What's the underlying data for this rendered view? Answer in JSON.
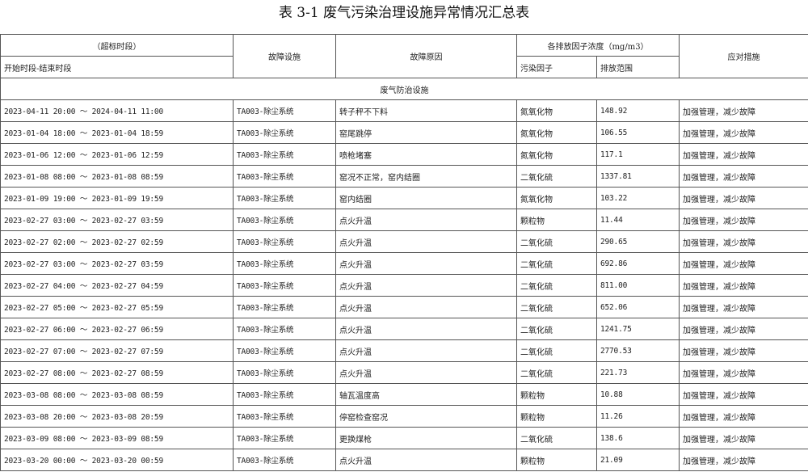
{
  "title": "表 3-1  废气污染治理设施异常情况汇总表",
  "header": {
    "period_group": "（超标时段）",
    "period": "开始时段-结束时段",
    "facility": "故障设施",
    "cause": "故障原因",
    "concentration_group": "各排放因子浓度（mg/m3）",
    "pollutant": "污染因子",
    "range": "排放范围",
    "measure": "应对措施"
  },
  "section": "废气防治设施",
  "rows": [
    {
      "period": "2023-04-11 20:00 ～ 2024-04-11 11:00",
      "facility": "TA003-除尘系统",
      "cause": "转子秤不下料",
      "pollutant": "氮氧化物",
      "range": "148.92",
      "measure": "加强管理，减少故障"
    },
    {
      "period": "2023-01-04 18:00 ～ 2023-01-04 18:59",
      "facility": "TA003-除尘系统",
      "cause": "窑尾跳停",
      "pollutant": "氮氧化物",
      "range": "106.55",
      "measure": "加强管理，减少故障"
    },
    {
      "period": "2023-01-06 12:00 ～ 2023-01-06 12:59",
      "facility": "TA003-除尘系统",
      "cause": "喷枪堵塞",
      "pollutant": "氮氧化物",
      "range": "117.1",
      "measure": "加强管理，减少故障"
    },
    {
      "period": "2023-01-08 08:00 ～ 2023-01-08 08:59",
      "facility": "TA003-除尘系统",
      "cause": "窑况不正常，窑内结圈",
      "pollutant": "二氧化硫",
      "range": "1337.81",
      "measure": "加强管理，减少故障"
    },
    {
      "period": "2023-01-09 19:00 ～ 2023-01-09 19:59",
      "facility": "TA003-除尘系统",
      "cause": "窑内结圈",
      "pollutant": "氮氧化物",
      "range": "103.22",
      "measure": "加强管理，减少故障"
    },
    {
      "period": "2023-02-27 03:00 ～ 2023-02-27 03:59",
      "facility": "TA003-除尘系统",
      "cause": "点火升温",
      "pollutant": "颗粒物",
      "range": "11.44",
      "measure": "加强管理，减少故障"
    },
    {
      "period": "2023-02-27 02:00 ～ 2023-02-27 02:59",
      "facility": "TA003-除尘系统",
      "cause": "点火升温",
      "pollutant": "二氧化硫",
      "range": "290.65",
      "measure": "加强管理，减少故障"
    },
    {
      "period": "2023-02-27 03:00 ～ 2023-02-27 03:59",
      "facility": "TA003-除尘系统",
      "cause": "点火升温",
      "pollutant": "二氧化硫",
      "range": "692.86",
      "measure": "加强管理，减少故障"
    },
    {
      "period": "2023-02-27 04:00 ～ 2023-02-27 04:59",
      "facility": "TA003-除尘系统",
      "cause": "点火升温",
      "pollutant": "二氧化硫",
      "range": "811.00",
      "measure": "加强管理，减少故障"
    },
    {
      "period": "2023-02-27 05:00 ～ 2023-02-27 05:59",
      "facility": "TA003-除尘系统",
      "cause": "点火升温",
      "pollutant": "二氧化硫",
      "range": "652.06",
      "measure": "加强管理，减少故障"
    },
    {
      "period": "2023-02-27 06:00 ～ 2023-02-27 06:59",
      "facility": "TA003-除尘系统",
      "cause": "点火升温",
      "pollutant": "二氧化硫",
      "range": "1241.75",
      "measure": "加强管理，减少故障"
    },
    {
      "period": "2023-02-27 07:00 ～ 2023-02-27 07:59",
      "facility": "TA003-除尘系统",
      "cause": "点火升温",
      "pollutant": "二氧化硫",
      "range": "2770.53",
      "measure": "加强管理，减少故障"
    },
    {
      "period": "2023-02-27 08:00 ～ 2023-02-27 08:59",
      "facility": "TA003-除尘系统",
      "cause": "点火升温",
      "pollutant": "二氧化硫",
      "range": "221.73",
      "measure": "加强管理，减少故障"
    },
    {
      "period": "2023-03-08 08:00 ～ 2023-03-08 08:59",
      "facility": "TA003-除尘系统",
      "cause": "轴瓦温度高",
      "pollutant": "颗粒物",
      "range": "10.88",
      "measure": "加强管理，减少故障"
    },
    {
      "period": "2023-03-08 20:00 ～ 2023-03-08 20:59",
      "facility": "TA003-除尘系统",
      "cause": "停窑检查窑况",
      "pollutant": "颗粒物",
      "range": "11.26",
      "measure": "加强管理，减少故障"
    },
    {
      "period": "2023-03-09 08:00 ～ 2023-03-09 08:59",
      "facility": "TA003-除尘系统",
      "cause": "更换煤枪",
      "pollutant": "二氧化硫",
      "range": "138.6",
      "measure": "加强管理，减少故障"
    },
    {
      "period": "2023-03-20 00:00 ～ 2023-03-20 00:59",
      "facility": "TA003-除尘系统",
      "cause": "点火升温",
      "pollutant": "颗粒物",
      "range": "21.09",
      "measure": "加强管理，减少故障"
    }
  ]
}
